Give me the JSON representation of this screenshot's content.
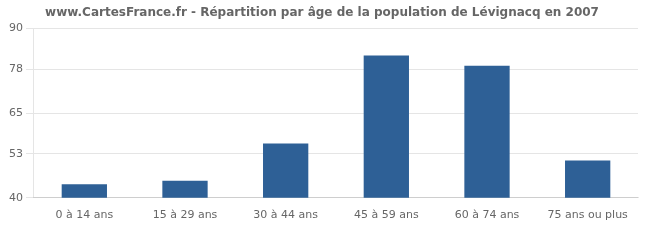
{
  "chart_data": {
    "type": "bar",
    "title": "www.CartesFrance.fr - Répartition par âge de la population de Lévignacq en 2007",
    "categories": [
      "0 à 14 ans",
      "15 à 29 ans",
      "30 à 44 ans",
      "45 à 59 ans",
      "60 à 74 ans",
      "75 ans ou plus"
    ],
    "values": [
      44,
      45,
      56,
      82,
      79,
      51
    ],
    "color": "#2e6096",
    "ylim": [
      40,
      90
    ],
    "yticks": [
      40,
      53,
      65,
      78,
      90
    ],
    "grid": true
  }
}
